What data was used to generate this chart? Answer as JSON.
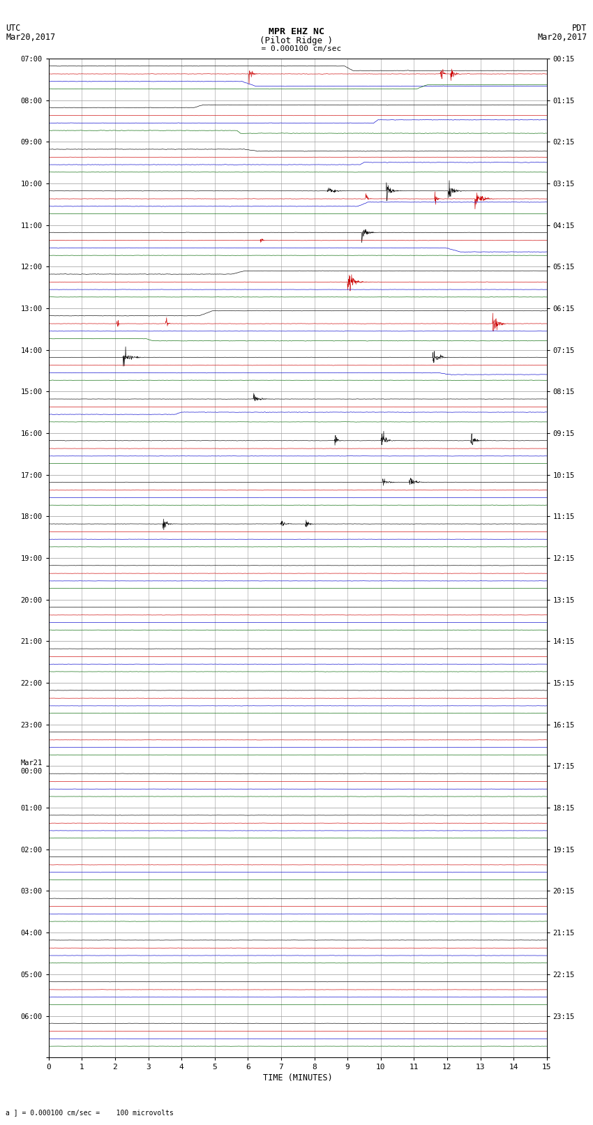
{
  "title_line1": "MPR EHZ NC",
  "title_line2": "(Pilot Ridge )",
  "scale_label": "  = 0.000100 cm/sec",
  "left_header_line1": "UTC",
  "left_header_line2": "Mar20,2017",
  "right_header_line1": "PDT",
  "right_header_line2": "Mar20,2017",
  "footer": "a ] = 0.000100 cm/sec =    100 microvolts",
  "xlabel": "TIME (MINUTES)",
  "num_rows": 24,
  "x_ticks": [
    0,
    1,
    2,
    3,
    4,
    5,
    6,
    7,
    8,
    9,
    10,
    11,
    12,
    13,
    14,
    15
  ],
  "left_times": [
    "07:00",
    "08:00",
    "09:00",
    "10:00",
    "11:00",
    "12:00",
    "13:00",
    "14:00",
    "15:00",
    "16:00",
    "17:00",
    "18:00",
    "19:00",
    "20:00",
    "21:00",
    "22:00",
    "23:00",
    "Mar21\n00:00",
    "01:00",
    "02:00",
    "03:00",
    "04:00",
    "05:00",
    "06:00"
  ],
  "right_times": [
    "00:15",
    "01:15",
    "02:15",
    "03:15",
    "04:15",
    "05:15",
    "06:15",
    "07:15",
    "08:15",
    "09:15",
    "10:15",
    "11:15",
    "12:15",
    "13:15",
    "14:15",
    "15:15",
    "16:15",
    "17:15",
    "18:15",
    "19:15",
    "20:15",
    "21:15",
    "22:15",
    "23:15"
  ],
  "bg_color": "#ffffff",
  "grid_color": "#999999",
  "trace_colors": [
    "#000000",
    "#cc0000",
    "#0000cc",
    "#006600"
  ],
  "fig_width": 8.5,
  "fig_height": 16.13,
  "seed": 12345
}
